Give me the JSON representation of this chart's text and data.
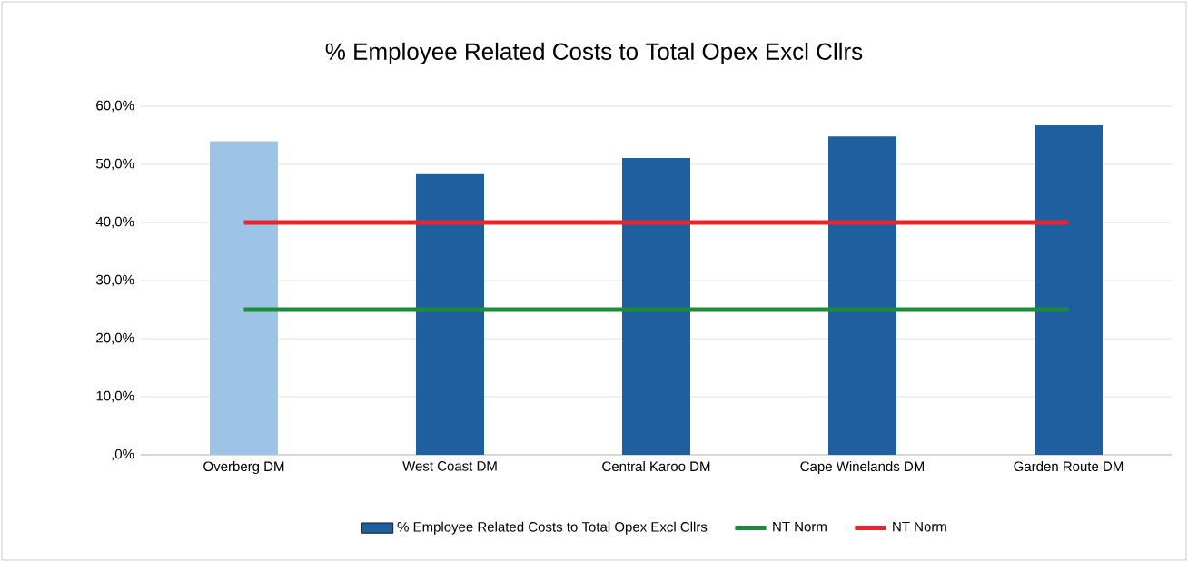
{
  "chart_data": {
    "type": "bar",
    "title": "% Employee Related Costs to Total Opex Excl Cllrs",
    "categories": [
      "Overberg DM",
      "West Coast DM",
      "Central Karoo DM",
      "Cape Winelands DM",
      "Garden Route DM"
    ],
    "series": [
      {
        "name": "% Employee Related Costs to Total Opex Excl Cllrs",
        "color": "#1f5fa0",
        "colors": [
          "#9dc3e6",
          "#1f5fa0",
          "#1f5fa0",
          "#1f5fa0",
          "#1f5fa0"
        ],
        "values": [
          54.0,
          48.3,
          51.1,
          54.8,
          56.7
        ]
      },
      {
        "name": "NT Norm",
        "type": "line",
        "color": "#1e8a3c",
        "values": [
          25,
          25,
          25,
          25,
          25
        ]
      },
      {
        "name": "NT Norm",
        "type": "line",
        "color": "#e8242c",
        "values": [
          40,
          40,
          40,
          40,
          40
        ]
      }
    ],
    "ylim": [
      0,
      60
    ],
    "yticks": [
      {
        "value": 0,
        "label": ",0%"
      },
      {
        "value": 10,
        "label": "10,0%"
      },
      {
        "value": 20,
        "label": "20,0%"
      },
      {
        "value": 30,
        "label": "30,0%"
      },
      {
        "value": 40,
        "label": "40,0%"
      },
      {
        "value": 50,
        "label": "50,0%"
      },
      {
        "value": 60,
        "label": "60,0%"
      }
    ],
    "grid": "y",
    "legend": "bottom"
  }
}
